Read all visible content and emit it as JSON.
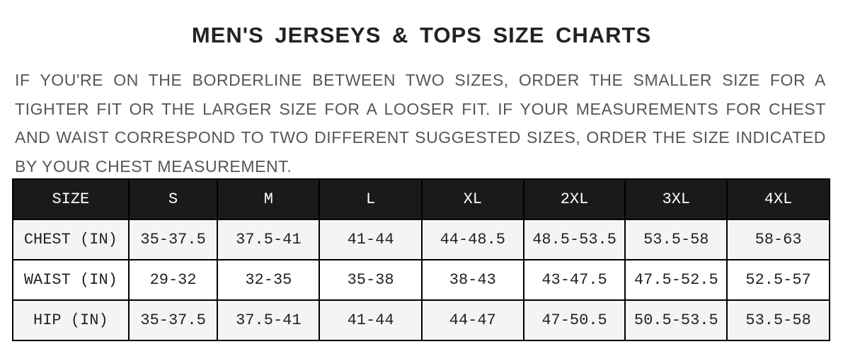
{
  "title": "MEN'S JERSEYS & TOPS SIZE CHARTS",
  "description": "IF YOU'RE ON THE BORDERLINE BETWEEN TWO SIZES, ORDER THE SMALLER SIZE FOR A TIGHTER FIT OR THE LARGER SIZE FOR A LOOSER FIT. IF YOUR MEASUREMENTS FOR CHEST AND WAIST CORRESPOND TO TWO DIFFERENT SUGGESTED SIZES, ORDER THE SIZE INDICATED BY YOUR CHEST MEASUREMENT.",
  "table": {
    "header": [
      "SIZE",
      "S",
      "M",
      "L",
      "XL",
      "2XL",
      "3XL",
      "4XL"
    ],
    "rows": [
      [
        "CHEST (IN)",
        "35-37.5",
        "37.5-41",
        "41-44",
        "44-48.5",
        "48.5-53.5",
        "53.5-58",
        "58-63"
      ],
      [
        "WAIST (IN)",
        "29-32",
        "32-35",
        "35-38",
        "38-43",
        "43-47.5",
        "47.5-52.5",
        "52.5-57"
      ],
      [
        "HIP (IN)",
        "35-37.5",
        "37.5-41",
        "41-44",
        "44-47",
        "47-50.5",
        "50.5-53.5",
        "53.5-58"
      ]
    ]
  },
  "colors": {
    "header_bg": "#1a1a1a",
    "row_alt": "#f3f4f6",
    "text_gray": "#555555"
  }
}
